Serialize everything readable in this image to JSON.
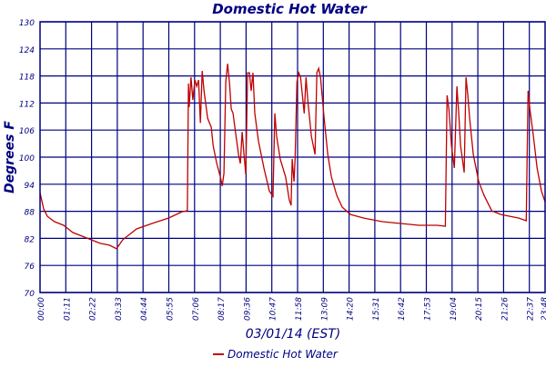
{
  "chart_data": {
    "type": "line",
    "title": "Domestic Hot Water",
    "xlabel": "03/01/14 (EST)",
    "ylabel": "Degrees F",
    "ylim": [
      70,
      130
    ],
    "xlim_minutes": [
      0,
      1392
    ],
    "y_ticks": [
      70,
      76,
      82,
      88,
      94,
      100,
      106,
      112,
      118,
      124,
      130
    ],
    "x_tick_labels": [
      "00:00",
      "01:11",
      "02:22",
      "03:33",
      "04:44",
      "05:55",
      "07:06",
      "08:17",
      "09:36",
      "10:47",
      "11:58",
      "13:09",
      "14:20",
      "15:31",
      "16:42",
      "17:53",
      "19:04",
      "20:15",
      "21:26",
      "22:37",
      "23:48"
    ],
    "grid": true,
    "legend": {
      "position": "bottom-center",
      "entries": [
        "Domestic Hot Water"
      ]
    },
    "colors": {
      "series": "#c00000",
      "axis": "#000080"
    },
    "series": [
      {
        "name": "Domestic Hot Water",
        "x_unit": "minutes",
        "points": [
          [
            0,
            92.1
          ],
          [
            10,
            88.5
          ],
          [
            20,
            86.9
          ],
          [
            40,
            85.7
          ],
          [
            65,
            84.9
          ],
          [
            90,
            83.3
          ],
          [
            128,
            82.1
          ],
          [
            166,
            80.9
          ],
          [
            191,
            80.5
          ],
          [
            211,
            79.7
          ],
          [
            228,
            81.7
          ],
          [
            266,
            84.1
          ],
          [
            316,
            85.5
          ],
          [
            354,
            86.5
          ],
          [
            391,
            87.9
          ],
          [
            404,
            88.1
          ],
          [
            406,
            88.3
          ],
          [
            409,
            116.3
          ],
          [
            411,
            111.1
          ],
          [
            416,
            117.7
          ],
          [
            421,
            112.7
          ],
          [
            427,
            117.1
          ],
          [
            432,
            115.7
          ],
          [
            437,
            117.1
          ],
          [
            442,
            107.6
          ],
          [
            447,
            119.1
          ],
          [
            452,
            114.7
          ],
          [
            462,
            108.6
          ],
          [
            467,
            107.6
          ],
          [
            472,
            106.6
          ],
          [
            477,
            102.6
          ],
          [
            487,
            98.6
          ],
          [
            497,
            95.6
          ],
          [
            502,
            93.6
          ],
          [
            507,
            96.4
          ],
          [
            512,
            116.7
          ],
          [
            517,
            120.7
          ],
          [
            522,
            116.7
          ],
          [
            527,
            110.7
          ],
          [
            532,
            109.7
          ],
          [
            537,
            106.6
          ],
          [
            547,
            100.6
          ],
          [
            552,
            98.6
          ],
          [
            557,
            105.6
          ],
          [
            562,
            100.6
          ],
          [
            567,
            96.2
          ],
          [
            572,
            118.7
          ],
          [
            577,
            118.7
          ],
          [
            582,
            114.7
          ],
          [
            587,
            118.7
          ],
          [
            592,
            109.7
          ],
          [
            602,
            103.6
          ],
          [
            617,
            97.6
          ],
          [
            632,
            92.5
          ],
          [
            642,
            91.3
          ],
          [
            647,
            109.7
          ],
          [
            652,
            104.6
          ],
          [
            662,
            99.6
          ],
          [
            677,
            95.6
          ],
          [
            687,
            90.5
          ],
          [
            692,
            89.3
          ],
          [
            695,
            99.6
          ],
          [
            700,
            94.6
          ],
          [
            703,
            99.6
          ],
          [
            708,
            116.7
          ],
          [
            713,
            118.7
          ],
          [
            718,
            117.7
          ],
          [
            728,
            109.7
          ],
          [
            733,
            117.7
          ],
          [
            738,
            112.7
          ],
          [
            748,
            104.6
          ],
          [
            758,
            100.6
          ],
          [
            763,
            118.7
          ],
          [
            768,
            119.7
          ],
          [
            773,
            117.7
          ],
          [
            783,
            108.6
          ],
          [
            793,
            100.6
          ],
          [
            803,
            95.6
          ],
          [
            818,
            91.5
          ],
          [
            833,
            88.9
          ],
          [
            856,
            87.3
          ],
          [
            893,
            86.5
          ],
          [
            943,
            85.7
          ],
          [
            994,
            85.3
          ],
          [
            1044,
            84.9
          ],
          [
            1094,
            84.9
          ],
          [
            1117,
            84.7
          ],
          [
            1122,
            113.7
          ],
          [
            1127,
            110.7
          ],
          [
            1134,
            102.6
          ],
          [
            1142,
            97.6
          ],
          [
            1149,
            115.7
          ],
          [
            1154,
            109.7
          ],
          [
            1159,
            102.6
          ],
          [
            1169,
            96.6
          ],
          [
            1174,
            117.7
          ],
          [
            1179,
            113.7
          ],
          [
            1184,
            108.6
          ],
          [
            1194,
            100.6
          ],
          [
            1209,
            94.6
          ],
          [
            1224,
            91.5
          ],
          [
            1245,
            88.1
          ],
          [
            1270,
            87.3
          ],
          [
            1295,
            86.9
          ],
          [
            1320,
            86.5
          ],
          [
            1340,
            85.9
          ],
          [
            1345,
            114.7
          ],
          [
            1350,
            110.7
          ],
          [
            1360,
            104.6
          ],
          [
            1370,
            97.6
          ],
          [
            1382,
            92.5
          ],
          [
            1392,
            90.1
          ]
        ]
      }
    ]
  }
}
